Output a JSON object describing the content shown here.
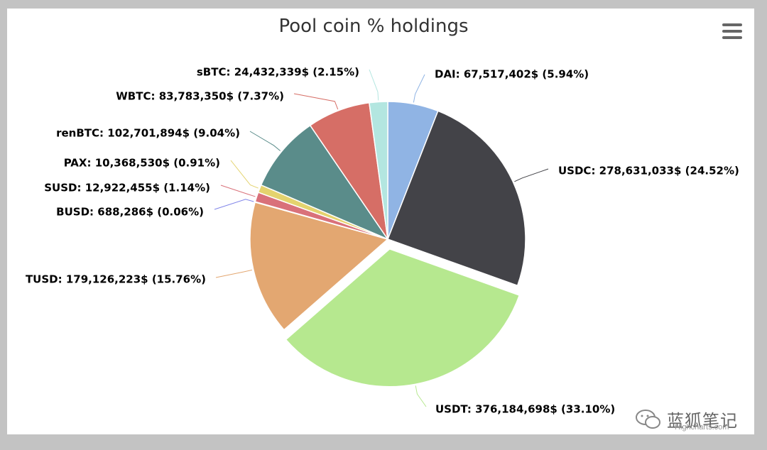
{
  "chart_data": {
    "type": "pie",
    "title": "Pool coin % holdings",
    "series": [
      {
        "name": "DAI",
        "value": 67517402,
        "percent": 5.94,
        "label": "DAI: 67,517,402$ (5.94%)",
        "color": "#90b4e4",
        "sliced": false
      },
      {
        "name": "USDC",
        "value": 278631033,
        "percent": 24.52,
        "label": "USDC: 278,631,033$ (24.52%)",
        "color": "#434348",
        "sliced": false
      },
      {
        "name": "USDT",
        "value": 376184698,
        "percent": 33.1,
        "label": "USDT: 376,184,698$ (33.10%)",
        "color": "#b6e88f",
        "sliced": true
      },
      {
        "name": "TUSD",
        "value": 179126223,
        "percent": 15.76,
        "label": "TUSD: 179,126,223$ (15.76%)",
        "color": "#e3a771",
        "sliced": false
      },
      {
        "name": "BUSD",
        "value": 688286,
        "percent": 0.06,
        "label": "BUSD: 688,286$ (0.06%)",
        "color": "#8085e9",
        "sliced": false
      },
      {
        "name": "SUSD",
        "value": 12922455,
        "percent": 1.14,
        "label": "SUSD: 12,922,455$ (1.14%)",
        "color": "#d9717a",
        "sliced": false
      },
      {
        "name": "PAX",
        "value": 10368530,
        "percent": 0.91,
        "label": "PAX: 10,368,530$ (0.91%)",
        "color": "#e4d36e",
        "sliced": false
      },
      {
        "name": "renBTC",
        "value": 102701894,
        "percent": 9.04,
        "label": "renBTC: 102,701,894$ (9.04%)",
        "color": "#5a8c8a",
        "sliced": false
      },
      {
        "name": "WBTC",
        "value": 83783350,
        "percent": 7.37,
        "label": "WBTC: 83,783,350$ (7.37%)",
        "color": "#d66e66",
        "sliced": false
      },
      {
        "name": "sBTC",
        "value": 24432339,
        "percent": 2.15,
        "label": "sBTC: 24,432,339$ (2.15%)",
        "color": "#b3e6e0",
        "sliced": false
      }
    ]
  },
  "toolbar": {
    "menu_icon": "hamburger-menu-icon"
  },
  "watermark": {
    "text": "蓝狐笔记",
    "icon": "wechat-icon"
  },
  "credits": {
    "text": "Highcharts.com"
  }
}
